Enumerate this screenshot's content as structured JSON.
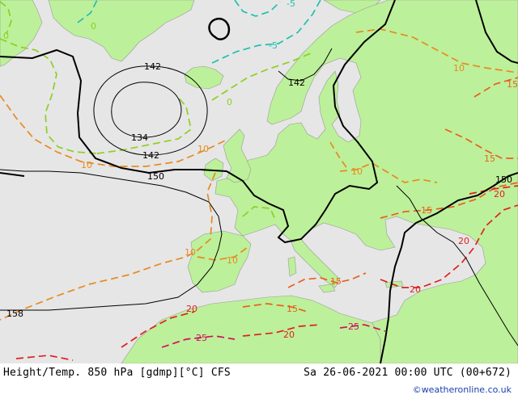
{
  "footer": {
    "title": "Height/Temp. 850 hPa [gdmp][°C] CFS",
    "valid_time": "Sa 26-06-2021 00:00 UTC (00+672)",
    "credit": "©weatheronline.co.uk"
  },
  "colors": {
    "sea": "#e6e6e6",
    "land": "#bdf09a",
    "height_contour": "#000000",
    "temp_minus5": "#20c0b0",
    "temp_0": "#8cd020",
    "temp_10": "#e88a20",
    "temp_15": "#e86020",
    "temp_20": "#e02020",
    "temp_25": "#d01060"
  },
  "height_labels": {
    "h142_a": "142",
    "h134": "134",
    "h142_b": "142",
    "h150_a": "150",
    "h142_c": "142",
    "h150_b": "150",
    "h158": "158"
  },
  "temp_labels": {
    "tm5_a": "-5",
    "tm5_b": "-5",
    "t0_a": "0",
    "t0_b": "0",
    "t0_c": "0",
    "t10_a": "10",
    "t10_b": "10",
    "t10_c": "10",
    "t10_d": "10",
    "t10_e": "10",
    "t10_f": "10",
    "t15_a": "15",
    "t15_b": "15",
    "t15_c": "15",
    "t15_d": "15",
    "t15_e": "15",
    "t20_a": "20",
    "t20_b": "20",
    "t20_c": "20",
    "t20_d": "20",
    "t20_e": "20",
    "t25_a": "25",
    "t25_b": "25"
  }
}
